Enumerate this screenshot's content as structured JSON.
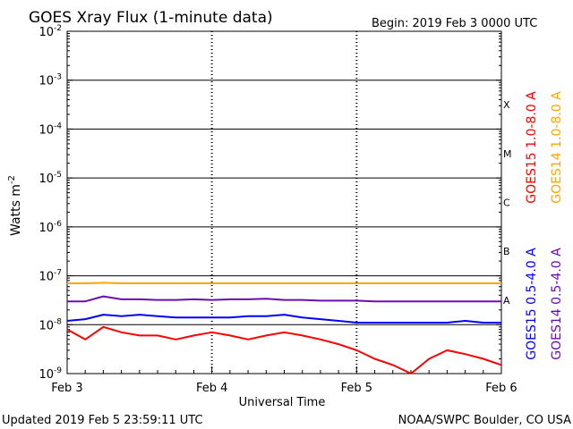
{
  "chart_data": {
    "type": "line",
    "title": "GOES Xray Flux (1-minute data)",
    "begin_label": "Begin:  2019 Feb 3 0000 UTC",
    "xlabel": "Universal Time",
    "ylabel_base": "Watts m",
    "ylabel_sup": "-2",
    "x_ticks": [
      "Feb 3",
      "Feb 4",
      "Feb 5",
      "Feb 6"
    ],
    "y_scale": "log",
    "ylim": [
      1e-09,
      0.01
    ],
    "y_ticks": [
      {
        "mantissa": "10",
        "exp": "-9"
      },
      {
        "mantissa": "10",
        "exp": "-8"
      },
      {
        "mantissa": "10",
        "exp": "-7"
      },
      {
        "mantissa": "10",
        "exp": "-6"
      },
      {
        "mantissa": "10",
        "exp": "-5"
      },
      {
        "mantissa": "10",
        "exp": "-4"
      },
      {
        "mantissa": "10",
        "exp": "-3"
      },
      {
        "mantissa": "10",
        "exp": "-2"
      }
    ],
    "flare_classes": [
      {
        "label": "A",
        "exp": -7.5
      },
      {
        "label": "B",
        "exp": -6.5
      },
      {
        "label": "C",
        "exp": -5.5
      },
      {
        "label": "M",
        "exp": -4.5
      },
      {
        "label": "X",
        "exp": -3.5
      }
    ],
    "x_days": [
      0,
      0.125,
      0.25,
      0.375,
      0.5,
      0.625,
      0.75,
      0.875,
      1.0,
      1.125,
      1.25,
      1.375,
      1.5,
      1.625,
      1.75,
      1.875,
      2.0,
      2.125,
      2.25,
      2.375,
      2.5,
      2.625,
      2.75,
      2.875,
      3.0
    ],
    "series": [
      {
        "name": "GOES15 1.0-8.0 A",
        "color": "#ff0000",
        "values": [
          8e-09,
          5e-09,
          9e-09,
          7e-09,
          6e-09,
          6e-09,
          5e-09,
          6e-09,
          7e-09,
          6e-09,
          5e-09,
          6e-09,
          7e-09,
          6e-09,
          5e-09,
          4e-09,
          3e-09,
          2e-09,
          1.5e-09,
          1e-09,
          2e-09,
          3e-09,
          2.5e-09,
          2e-09,
          1.5e-09
        ]
      },
      {
        "name": "GOES14 1.0-8.0 A",
        "color": "#ffa500",
        "values": [
          7e-08,
          7e-08,
          7.2e-08,
          7e-08,
          7e-08,
          7e-08,
          7e-08,
          7e-08,
          7e-08,
          7e-08,
          7e-08,
          7e-08,
          7e-08,
          7e-08,
          7e-08,
          7e-08,
          7e-08,
          7e-08,
          7e-08,
          7e-08,
          7e-08,
          7e-08,
          7e-08,
          7e-08,
          7e-08
        ]
      },
      {
        "name": "GOES15 0.5-4.0 A",
        "color": "#0000ff",
        "values": [
          1.2e-08,
          1.3e-08,
          1.6e-08,
          1.5e-08,
          1.6e-08,
          1.5e-08,
          1.4e-08,
          1.4e-08,
          1.4e-08,
          1.4e-08,
          1.5e-08,
          1.5e-08,
          1.6e-08,
          1.4e-08,
          1.3e-08,
          1.2e-08,
          1.1e-08,
          1.1e-08,
          1.1e-08,
          1.1e-08,
          1.1e-08,
          1.1e-08,
          1.2e-08,
          1.1e-08,
          1.1e-08
        ]
      },
      {
        "name": "GOES14 0.5-4.0 A",
        "color": "#6a0dad",
        "values": [
          3e-08,
          3e-08,
          3.8e-08,
          3.3e-08,
          3.3e-08,
          3.2e-08,
          3.2e-08,
          3.3e-08,
          3.2e-08,
          3.3e-08,
          3.3e-08,
          3.4e-08,
          3.2e-08,
          3.2e-08,
          3.1e-08,
          3.1e-08,
          3.1e-08,
          3e-08,
          3e-08,
          3e-08,
          3e-08,
          3e-08,
          3e-08,
          3e-08,
          3e-08
        ]
      }
    ]
  },
  "footer": {
    "updated": "Updated 2019 Feb  5 23:59:11 UTC",
    "credit": "NOAA/SWPC Boulder, CO USA"
  }
}
